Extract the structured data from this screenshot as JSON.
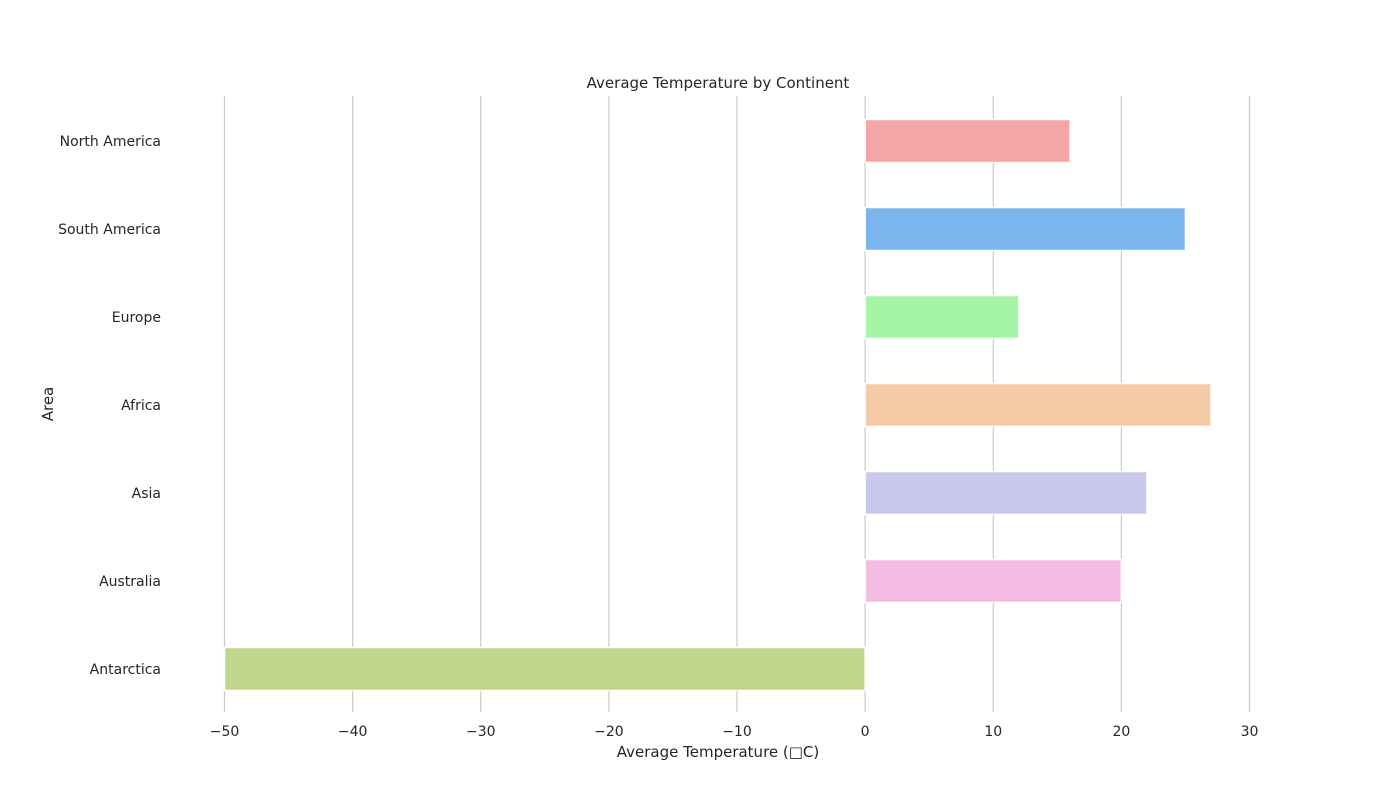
{
  "chart_data": {
    "type": "bar",
    "orientation": "horizontal",
    "title": "Average Temperature by Continent",
    "xlabel": "Average Temperature (□C)",
    "ylabel": "Area",
    "categories": [
      "North America",
      "South America",
      "Europe",
      "Africa",
      "Asia",
      "Australia",
      "Antarctica"
    ],
    "values": [
      16,
      25,
      12,
      27,
      22,
      20,
      -50
    ],
    "colors": [
      "#f4a6a6",
      "#7ab5ee",
      "#a6f4a6",
      "#f4cba6",
      "#c8c8ec",
      "#f4bbe3",
      "#c0d68c"
    ],
    "xlim": [
      -50,
      30
    ],
    "xticks": [
      -50,
      -40,
      -30,
      -20,
      -10,
      0,
      10,
      20,
      30
    ],
    "xtick_labels": [
      "−50",
      "−40",
      "−30",
      "−20",
      "−10",
      "0",
      "10",
      "20",
      "30"
    ],
    "grid": "vertical",
    "legend": "none"
  }
}
